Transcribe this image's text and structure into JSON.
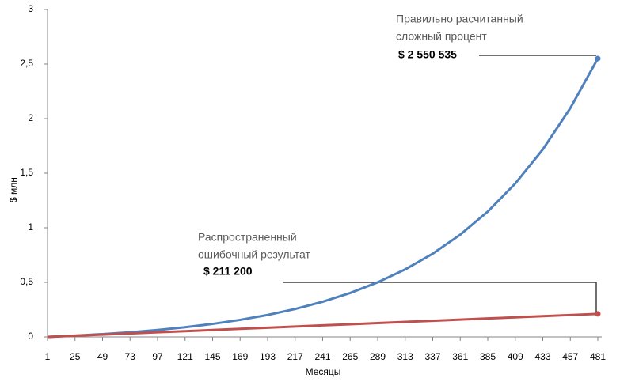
{
  "chart_data": {
    "type": "line",
    "x_label": "Месяцы",
    "y_label": "$ млн",
    "x": [
      1,
      25,
      49,
      73,
      97,
      121,
      145,
      169,
      193,
      217,
      241,
      265,
      289,
      313,
      337,
      361,
      385,
      409,
      433,
      457,
      481
    ],
    "xlim": [
      1,
      481
    ],
    "xticks": [
      1,
      25,
      49,
      73,
      97,
      121,
      145,
      169,
      193,
      217,
      241,
      265,
      289,
      313,
      337,
      361,
      385,
      409,
      433,
      457,
      481
    ],
    "ylim": [
      0,
      3
    ],
    "yticks": [
      0,
      {
        "value": 0.5,
        "label": "0,5"
      },
      1,
      {
        "value": 1.5,
        "label": "1,5"
      },
      2,
      {
        "value": 2.5,
        "label": "2,5"
      },
      3
    ],
    "series": [
      {
        "color": "#4f81bd",
        "values": [
          0,
          0.0116,
          0.0257,
          0.0428,
          0.0635,
          0.0887,
          0.1192,
          0.1563,
          0.2013,
          0.2559,
          0.3222,
          0.4026,
          0.5003,
          0.6188,
          0.7625,
          0.9369,
          1.1486,
          1.4056,
          1.7175,
          2.0959,
          2.550535
        ]
      },
      {
        "color": "#c0504d",
        "values": [
          0,
          0.01056,
          0.02112,
          0.03168,
          0.04224,
          0.0528,
          0.06336,
          0.07392,
          0.08448,
          0.09504,
          0.1056,
          0.11616,
          0.12672,
          0.13728,
          0.14784,
          0.1584,
          0.16896,
          0.17952,
          0.19008,
          0.20064,
          0.2112
        ]
      }
    ],
    "annotations": [
      {
        "lines": [
          "Правильно расчитанный",
          "сложный процент"
        ],
        "value_label": "$ 2 550 535"
      },
      {
        "lines": [
          "Распространенный",
          "ошибочный результат"
        ],
        "value_label": "$ 211 200"
      }
    ]
  }
}
